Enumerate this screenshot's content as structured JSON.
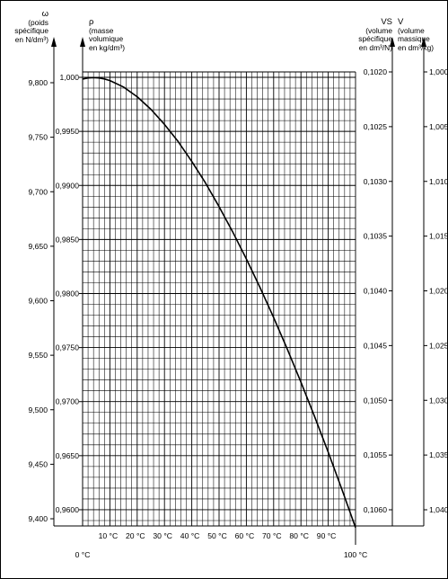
{
  "axes": {
    "omega": {
      "symbol": "ω",
      "label_lines": [
        "(poids",
        "spécifique",
        "en N/dm³)"
      ],
      "ticks": [
        "9,800",
        "9,750",
        "9,700",
        "9,650",
        "9,600",
        "9,550",
        "9,500",
        "9,450",
        "9,400"
      ]
    },
    "rho": {
      "symbol": "ρ",
      "label_lines": [
        "(masse",
        "volumique",
        "en kg/dm³)"
      ],
      "ticks": [
        "1,000",
        "0,9950",
        "0,9900",
        "0,9850",
        "0,9800",
        "0,9750",
        "0,9700",
        "0,9650",
        "0,9600"
      ]
    },
    "vs": {
      "symbol": "VS",
      "label_lines": [
        "(volume",
        "spécifique",
        "en dm³/N)"
      ],
      "ticks": [
        "0,1020",
        "0,1025",
        "0,1030",
        "0,1035",
        "0,1040",
        "0,1045",
        "0,1050",
        "0,1055",
        "0,1060"
      ]
    },
    "v": {
      "symbol": "V",
      "label_lines": [
        "(volume",
        "massique",
        "en dm³/kg)"
      ],
      "ticks": [
        "1,000",
        "1,005",
        "1,010",
        "1,015",
        "1,020",
        "1,025",
        "1,030",
        "1,035",
        "1,040"
      ]
    },
    "x": {
      "ticks": [
        "0 °C",
        "10 °C",
        "20 °C",
        "30 °C",
        "40 °C",
        "50 °C",
        "60 °C",
        "70 °C",
        "80 °C",
        "90 °C",
        "100 °C"
      ]
    }
  },
  "chart_data": {
    "type": "line",
    "title": "",
    "xlabel": "",
    "ylabel": "ρ (masse volumique en kg/dm³)",
    "x_unit": "°C",
    "xlim": [
      0,
      100
    ],
    "ylim": [
      0.9585,
      1.0005
    ],
    "grid": true,
    "series": [
      {
        "x": [
          0,
          2,
          4,
          6,
          8,
          10,
          15,
          20,
          25,
          30,
          35,
          40,
          45,
          50,
          55,
          60,
          65,
          70,
          75,
          80,
          85,
          90,
          95,
          100
        ],
        "y": [
          0.99984,
          0.99994,
          0.99997,
          0.99994,
          0.99985,
          0.9997,
          0.9991,
          0.9982,
          0.99705,
          0.99565,
          0.99406,
          0.99222,
          0.99024,
          0.98804,
          0.9857,
          0.9832,
          0.98056,
          0.97778,
          0.97486,
          0.9718,
          0.96862,
          0.96532,
          0.96189,
          0.95835
        ]
      }
    ]
  }
}
